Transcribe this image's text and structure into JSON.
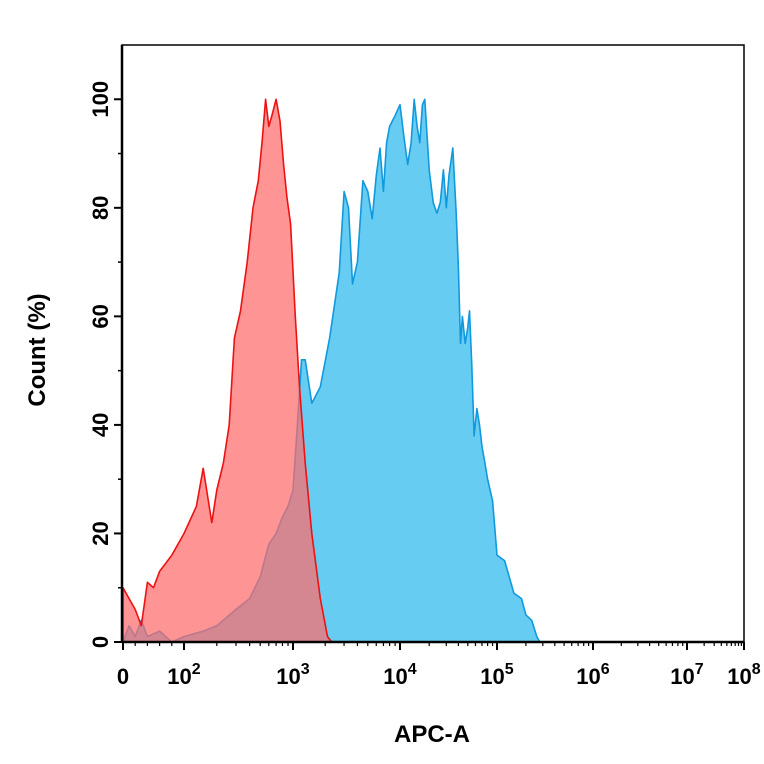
{
  "chart_data": {
    "type": "area",
    "xlabel": "APC-A",
    "ylabel": "Count  (%)",
    "x_scale": "biexponential (0 then log10)",
    "xlim": [
      0,
      100000000
    ],
    "ylim": [
      0,
      110
    ],
    "x_ticks": [
      {
        "value": 0,
        "base": "0",
        "exp": ""
      },
      {
        "value": 100,
        "base": "10",
        "exp": "2"
      },
      {
        "value": 1000,
        "base": "10",
        "exp": "3"
      },
      {
        "value": 10000,
        "base": "10",
        "exp": "4"
      },
      {
        "value": 100000,
        "base": "10",
        "exp": "5"
      },
      {
        "value": 1000000,
        "base": "10",
        "exp": "6"
      },
      {
        "value": 10000000,
        "base": "10",
        "exp": "7"
      },
      {
        "value": 100000000,
        "base": "10",
        "exp": "8"
      }
    ],
    "y_ticks": [
      0,
      20,
      40,
      60,
      80,
      100
    ],
    "grid": false,
    "legend": "none",
    "series": [
      {
        "color": "#ff6b6b",
        "stroke": "#ee1111",
        "x": [
          0,
          10,
          20,
          30,
          40,
          50,
          60,
          80,
          100,
          130,
          150,
          180,
          200,
          230,
          260,
          290,
          330,
          380,
          430,
          480,
          520,
          560,
          600,
          640,
          700,
          760,
          820,
          880,
          950,
          1050,
          1150,
          1300,
          1500,
          1800,
          2100,
          2300
        ],
        "y": [
          10,
          8,
          6,
          3,
          11,
          10,
          13,
          16,
          20,
          25,
          32,
          22,
          28,
          33,
          40,
          56,
          61,
          70,
          80,
          85,
          92,
          100,
          95,
          97,
          100,
          96,
          88,
          82,
          77,
          60,
          47,
          33,
          20,
          8,
          1,
          0
        ]
      },
      {
        "color": "#33bbee",
        "stroke": "#1199dd",
        "x": [
          0,
          10,
          20,
          30,
          40,
          60,
          80,
          100,
          150,
          200,
          300,
          400,
          500,
          600,
          700,
          800,
          900,
          1000,
          1100,
          1200,
          1300,
          1500,
          1800,
          2200,
          2700,
          3000,
          3300,
          3600,
          4000,
          4500,
          5000,
          5500,
          6000,
          6500,
          7000,
          7500,
          8000,
          9000,
          10000,
          11000,
          12000,
          13000,
          14000,
          15000,
          16000,
          17000,
          18000,
          20000,
          22000,
          24000,
          26000,
          28000,
          30000,
          32000,
          35000,
          38000,
          40000,
          42000,
          44000,
          47000,
          50000,
          52000,
          55000,
          58000,
          62000,
          66000,
          70000,
          75000,
          80000,
          90000,
          100000,
          120000,
          150000,
          180000,
          200000,
          230000,
          260000,
          280000,
          300000
        ],
        "y": [
          0,
          3,
          1,
          4,
          1,
          2,
          0,
          1,
          2,
          3,
          6,
          8,
          12,
          18,
          20,
          23,
          25,
          28,
          40,
          52,
          52,
          44,
          47,
          56,
          68,
          83,
          80,
          66,
          70,
          85,
          83,
          78,
          86,
          91,
          83,
          92,
          95,
          97,
          99,
          93,
          88,
          92,
          100,
          95,
          92,
          99,
          100,
          87,
          81,
          79,
          81,
          87,
          80,
          86,
          91,
          79,
          69,
          55,
          60,
          55,
          58,
          61,
          51,
          38,
          43,
          40,
          36,
          33,
          30,
          26,
          16,
          15,
          9,
          8,
          5,
          4,
          1,
          0,
          0
        ]
      }
    ]
  }
}
